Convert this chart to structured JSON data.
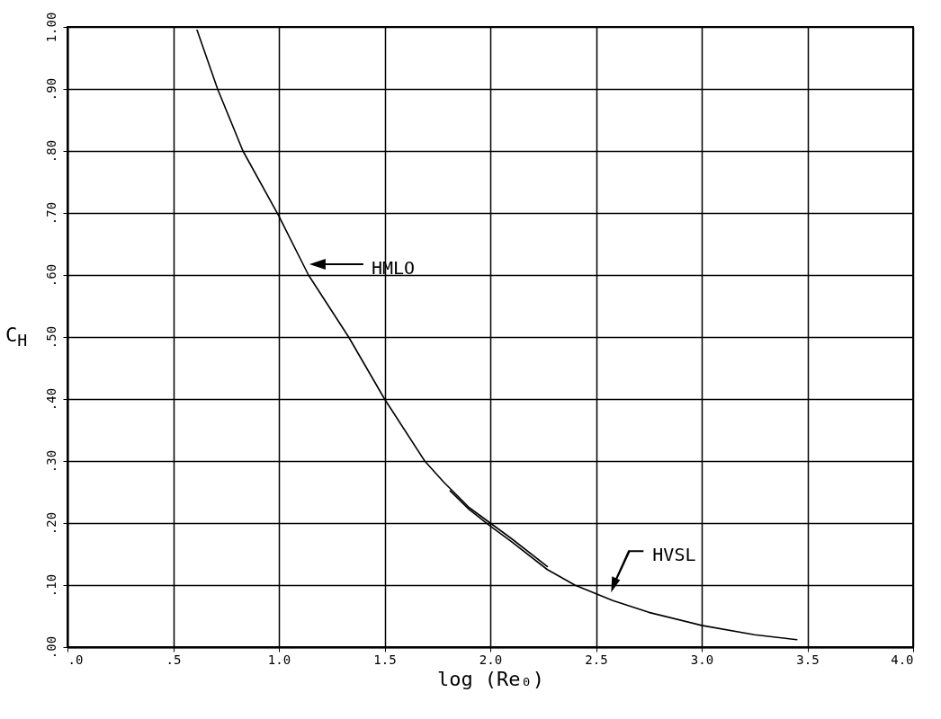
{
  "chart_data": {
    "type": "line",
    "xlabel": "log (Re₀)",
    "ylabel": "C$_{H}$",
    "xlim": [
      0,
      4
    ],
    "ylim": [
      0,
      1
    ],
    "xticks": [
      {
        "value": 0,
        "label": ".0"
      },
      {
        "value": 0.5,
        "label": ".5"
      },
      {
        "value": 1,
        "label": "1.0"
      },
      {
        "value": 1.5,
        "label": "1.5"
      },
      {
        "value": 2,
        "label": "2.0"
      },
      {
        "value": 2.5,
        "label": "2.5"
      },
      {
        "value": 3,
        "label": "3.0"
      },
      {
        "value": 3.5,
        "label": "3.5"
      },
      {
        "value": 4,
        "label": "4.0"
      }
    ],
    "yticks": [
      {
        "value": 0,
        "label": ".00"
      },
      {
        "value": 0.1,
        "label": ".10"
      },
      {
        "value": 0.2,
        "label": ".20"
      },
      {
        "value": 0.3,
        "label": ".30"
      },
      {
        "value": 0.4,
        "label": ".40"
      },
      {
        "value": 0.5,
        "label": ".50"
      },
      {
        "value": 0.6,
        "label": ".60"
      },
      {
        "value": 0.7,
        "label": ".70"
      },
      {
        "value": 0.8,
        "label": ".80"
      },
      {
        "value": 0.9,
        "label": ".90"
      },
      {
        "value": 1,
        "label": "1.00"
      }
    ],
    "grid": true,
    "marker": "none",
    "line_style": "solid",
    "series": [
      {
        "name": "HMLO",
        "color": "#000000",
        "x": [
          0.613,
          0.71,
          0.83,
          1.0,
          1.14,
          1.33,
          1.5,
          1.69,
          1.78,
          1.9,
          2.0,
          2.1,
          2.27
        ],
        "values": [
          0.995,
          0.9,
          0.8,
          0.695,
          0.6,
          0.5,
          0.4,
          0.3,
          0.266,
          0.225,
          0.2,
          0.175,
          0.13
        ]
      },
      {
        "name": "HVSL",
        "color": "#000000",
        "x": [
          1.81,
          1.9,
          2.0,
          2.1,
          2.27,
          2.4,
          2.58,
          2.75,
          3.0,
          3.25,
          3.45
        ],
        "values": [
          0.252,
          0.222,
          0.195,
          0.17,
          0.125,
          0.1,
          0.075,
          0.056,
          0.035,
          0.02,
          0.012
        ]
      }
    ]
  }
}
